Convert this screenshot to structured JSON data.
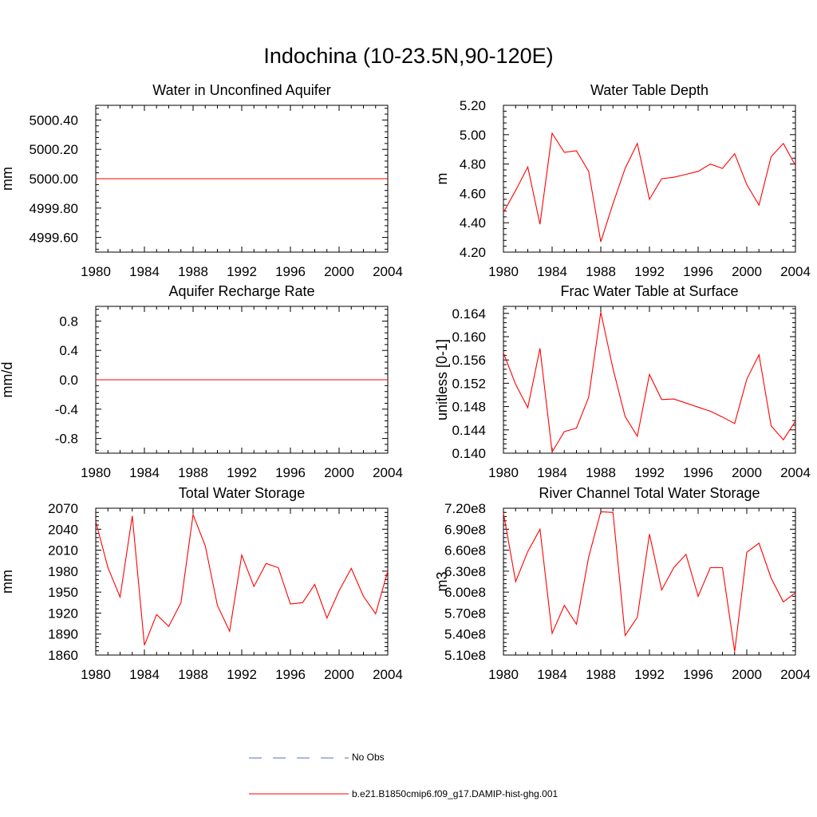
{
  "title": "Indochina (10-23.5N,90-120E)",
  "colors": {
    "model": "#ff0000",
    "obs": "#5a6fb5",
    "axis": "#000000"
  },
  "legend": [
    {
      "label": "No Obs",
      "style": "dashed",
      "color": "#5a6fb5"
    },
    {
      "label": "b.e21.B1850cmip6.f09_g17.DAMIP-hist-ghg.001",
      "style": "solid",
      "color": "#ff0000"
    }
  ],
  "chart_data": [
    {
      "type": "line",
      "title": "Water in Unconfined Aquifer",
      "ylabel": "mm",
      "xlim": [
        1980,
        2004
      ],
      "ylim": [
        4999.5,
        5000.5
      ],
      "xticks": [
        1980,
        1984,
        1988,
        1992,
        1996,
        2000,
        2004
      ],
      "xtick_labels": [
        "1980",
        "1984",
        "1988",
        "1992",
        "1996",
        "2000",
        "2004"
      ],
      "yticks": [
        4999.6,
        4999.8,
        5000.0,
        5000.2,
        5000.4
      ],
      "ytick_labels": [
        "4999.60",
        "4999.80",
        "5000.00",
        "5000.20",
        "5000.40"
      ],
      "series": [
        {
          "x": [
            1980,
            2004
          ],
          "values": [
            5000.0,
            5000.0
          ]
        }
      ]
    },
    {
      "type": "line",
      "title": "Water Table Depth",
      "ylabel": "m",
      "xlim": [
        1980,
        2004
      ],
      "ylim": [
        4.2,
        5.2
      ],
      "xticks": [
        1980,
        1984,
        1988,
        1992,
        1996,
        2000,
        2004
      ],
      "xtick_labels": [
        "1980",
        "1984",
        "1988",
        "1992",
        "1996",
        "2000",
        "2004"
      ],
      "yticks": [
        4.2,
        4.4,
        4.6,
        4.8,
        5.0,
        5.2
      ],
      "ytick_labels": [
        "4.20",
        "4.40",
        "4.60",
        "4.80",
        "5.00",
        "5.20"
      ],
      "series": [
        {
          "x": [
            1980,
            1981,
            1982,
            1983,
            1984,
            1985,
            1986,
            1987,
            1988,
            1989,
            1990,
            1991,
            1992,
            1993,
            1994,
            1995,
            1996,
            1997,
            1998,
            1999,
            2000,
            2001,
            2002,
            2003,
            2004
          ],
          "values": [
            4.47,
            4.62,
            4.78,
            4.39,
            5.01,
            4.88,
            4.89,
            4.75,
            4.27,
            4.53,
            4.77,
            4.94,
            4.56,
            4.7,
            4.71,
            4.73,
            4.75,
            4.8,
            4.77,
            4.87,
            4.66,
            4.52,
            4.85,
            4.94,
            4.79
          ]
        }
      ]
    },
    {
      "type": "line",
      "title": "Aquifer Recharge Rate",
      "ylabel": "mm/d",
      "xlim": [
        1980,
        2004
      ],
      "ylim": [
        -1.0,
        1.0
      ],
      "xticks": [
        1980,
        1984,
        1988,
        1992,
        1996,
        2000,
        2004
      ],
      "xtick_labels": [
        "1980",
        "1984",
        "1988",
        "1992",
        "1996",
        "2000",
        "2004"
      ],
      "yticks": [
        -0.8,
        -0.4,
        0.0,
        0.4,
        0.8
      ],
      "ytick_labels": [
        "-0.8",
        "-0.4",
        "0.0",
        "0.4",
        "0.8"
      ],
      "series": [
        {
          "x": [
            1980,
            2004
          ],
          "values": [
            0.0,
            0.0
          ]
        }
      ]
    },
    {
      "type": "line",
      "title": "Frac Water Table at Surface",
      "ylabel": "unitless [0-1]",
      "xlim": [
        1980,
        2004
      ],
      "ylim": [
        0.14,
        0.1652
      ],
      "xticks": [
        1980,
        1984,
        1988,
        1992,
        1996,
        2000,
        2004
      ],
      "xtick_labels": [
        "1980",
        "1984",
        "1988",
        "1992",
        "1996",
        "2000",
        "2004"
      ],
      "yticks": [
        0.14,
        0.144,
        0.148,
        0.152,
        0.156,
        0.16,
        0.164
      ],
      "ytick_labels": [
        "0.140",
        "0.144",
        "0.148",
        "0.152",
        "0.156",
        "0.160",
        "0.164"
      ],
      "series": [
        {
          "x": [
            1980,
            1981,
            1982,
            1983,
            1984,
            1985,
            1986,
            1987,
            1988,
            1989,
            1990,
            1991,
            1992,
            1993,
            1994,
            1995,
            1996,
            1997,
            1998,
            1999,
            2000,
            2001,
            2002,
            2003,
            2004
          ],
          "values": [
            0.1572,
            0.1518,
            0.1478,
            0.158,
            0.1402,
            0.1437,
            0.1443,
            0.1496,
            0.1642,
            0.1545,
            0.1463,
            0.1429,
            0.1535,
            0.1492,
            0.1493,
            0.1486,
            0.1479,
            0.1472,
            0.1462,
            0.1451,
            0.1527,
            0.1569,
            0.1447,
            0.1423,
            0.1455
          ]
        }
      ]
    },
    {
      "type": "line",
      "title": "Total Water Storage",
      "ylabel": "mm",
      "xlim": [
        1980,
        2004
      ],
      "ylim": [
        1860,
        2070
      ],
      "xticks": [
        1980,
        1984,
        1988,
        1992,
        1996,
        2000,
        2004
      ],
      "xtick_labels": [
        "1980",
        "1984",
        "1988",
        "1992",
        "1996",
        "2000",
        "2004"
      ],
      "yticks": [
        1860,
        1890,
        1920,
        1950,
        1980,
        2010,
        2040,
        2070
      ],
      "ytick_labels": [
        "1860",
        "1890",
        "1920",
        "1950",
        "1980",
        "2010",
        "2040",
        "2070"
      ],
      "series": [
        {
          "x": [
            1980,
            1981,
            1982,
            1983,
            1984,
            1985,
            1986,
            1987,
            1988,
            1989,
            1990,
            1991,
            1992,
            1993,
            1994,
            1995,
            1996,
            1997,
            1998,
            1999,
            2000,
            2001,
            2002,
            2003,
            2004
          ],
          "values": [
            2051,
            1985,
            1943,
            2059,
            1874,
            1918,
            1901,
            1935,
            2061,
            2016,
            1931,
            1894,
            2003,
            1958,
            1991,
            1985,
            1933,
            1935,
            1961,
            1913,
            1952,
            1984,
            1944,
            1919,
            1980
          ]
        }
      ]
    },
    {
      "type": "line",
      "title": "River Channel Total Water Storage",
      "ylabel": "m3",
      "xlim": [
        1980,
        2004
      ],
      "ylim": [
        510000000,
        720000000
      ],
      "xticks": [
        1980,
        1984,
        1988,
        1992,
        1996,
        2000,
        2004
      ],
      "xtick_labels": [
        "1980",
        "1984",
        "1988",
        "1992",
        "1996",
        "2000",
        "2004"
      ],
      "yticks": [
        510000000,
        540000000,
        570000000,
        600000000,
        630000000,
        660000000,
        690000000,
        720000000
      ],
      "ytick_labels": [
        "5.10e8",
        "5.40e8",
        "5.70e8",
        "6.00e8",
        "6.30e8",
        "6.60e8",
        "6.90e8",
        "7.20e8"
      ],
      "series": [
        {
          "x": [
            1980,
            1981,
            1982,
            1983,
            1984,
            1985,
            1986,
            1987,
            1988,
            1989,
            1990,
            1991,
            1992,
            1993,
            1994,
            1995,
            1996,
            1997,
            1998,
            1999,
            2000,
            2001,
            2002,
            2003,
            2004
          ],
          "values": [
            713000000,
            615000000,
            658000000,
            690000000,
            541000000,
            581000000,
            554000000,
            650000000,
            715000000,
            714000000,
            538000000,
            564000000,
            683000000,
            603000000,
            635000000,
            654000000,
            594000000,
            635000000,
            635000000,
            515000000,
            657000000,
            670000000,
            620000000,
            586000000,
            599000000
          ]
        }
      ]
    }
  ]
}
